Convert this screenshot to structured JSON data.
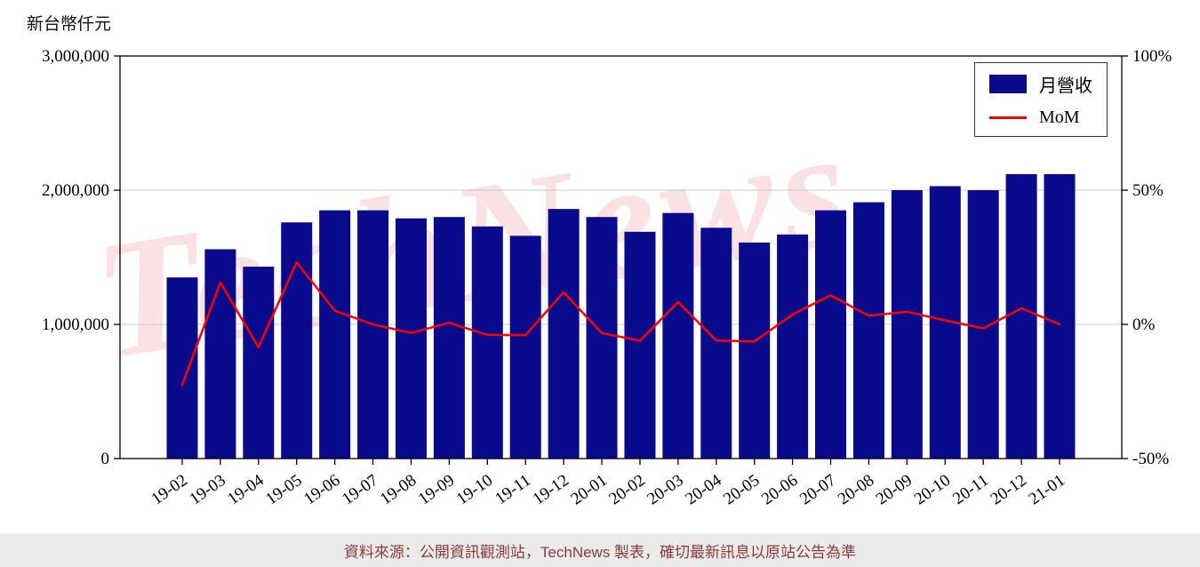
{
  "watermark": {
    "text": "TechNews",
    "color": "#e4495f"
  },
  "footer": {
    "text": "資料來源：公開資訊觀測站，TechNews 製表，確切最新訊息以原站公告為準",
    "text_color": "#8b3a3a",
    "background": "#ebebeb"
  },
  "chart_data": {
    "type": "bar+line",
    "title": "",
    "ylabel": "新台幣仟元",
    "grid": "horizontal",
    "legend_position": "top-right",
    "categories": [
      "19-02",
      "19-03",
      "19-04",
      "19-05",
      "19-06",
      "19-07",
      "19-08",
      "19-09",
      "19-10",
      "19-11",
      "19-12",
      "20-01",
      "20-02",
      "20-03",
      "20-04",
      "20-05",
      "20-06",
      "20-07",
      "20-08",
      "20-09",
      "20-10",
      "20-11",
      "20-12",
      "21-01"
    ],
    "series": [
      {
        "name": "月營收",
        "type": "bar",
        "axis": "left",
        "color": "#0a0a8c",
        "values": [
          1350000,
          1560000,
          1430000,
          1760000,
          1850000,
          1850000,
          1790000,
          1800000,
          1730000,
          1660000,
          1860000,
          1800000,
          1690000,
          1830000,
          1720000,
          1610000,
          1670000,
          1850000,
          1910000,
          2000000,
          2030000,
          2000000,
          2120000,
          2120000
        ]
      },
      {
        "name": "MoM",
        "type": "line",
        "axis": "right",
        "color": "#ff0000",
        "values": [
          -22.5,
          15.6,
          -8.5,
          23.1,
          5.1,
          0.0,
          -3.2,
          0.6,
          -3.9,
          -4.0,
          12.0,
          -3.2,
          -6.1,
          8.3,
          -6.0,
          -6.4,
          3.7,
          10.8,
          3.2,
          4.7,
          1.5,
          -1.5,
          6.0,
          0.0
        ]
      }
    ],
    "left_axis": {
      "min": 0,
      "max": 3000000,
      "ticks": [
        [
          0,
          "0"
        ],
        [
          1000000,
          "1,000,000"
        ],
        [
          2000000,
          "2,000,000"
        ],
        [
          3000000,
          "3,000,000"
        ]
      ]
    },
    "right_axis": {
      "min": -50,
      "max": 100,
      "ticks": [
        [
          -50,
          "-50%"
        ],
        [
          0,
          "0%"
        ],
        [
          50,
          "50%"
        ],
        [
          100,
          "100%"
        ]
      ]
    }
  }
}
